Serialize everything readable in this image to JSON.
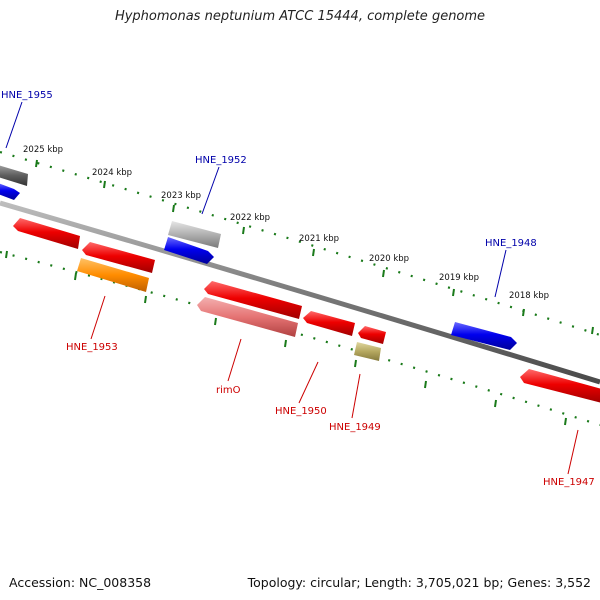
{
  "title": "Hyphomonas neptunium ATCC 15444, complete genome",
  "footer": {
    "accession": "Accession: NC_008358",
    "topology": "Topology: circular; Length: 3,705,021 bp; Genes: 3,552"
  },
  "ticks": [
    "2025 kbp",
    "2024 kbp",
    "2023 kbp",
    "2022 kbp",
    "2021 kbp",
    "2020 kbp",
    "2019 kbp",
    "2018 kbp"
  ],
  "gene_labels": {
    "hne_1955": "HNE_1955",
    "hne_1952": "HNE_1952",
    "hne_1948": "HNE_1948",
    "hne_1953": "HNE_1953",
    "rimo": "rimO",
    "hne_1950": "HNE_1950",
    "hne_1949": "HNE_1949",
    "hne_1947": "HNE_1947"
  },
  "colors": {
    "forward_label": "#0000aa",
    "reverse_label": "#cc0000",
    "backbone": "#808080",
    "tick_dots": "#1a7a1a",
    "gene_red": "#ee0000",
    "gene_blue": "#0000ee",
    "gene_orange": "#ff8c00",
    "gene_pink": "#e57373",
    "gene_grey": "#aaaaaa",
    "gene_dark": "#666666",
    "gene_olive": "#b5a860"
  }
}
